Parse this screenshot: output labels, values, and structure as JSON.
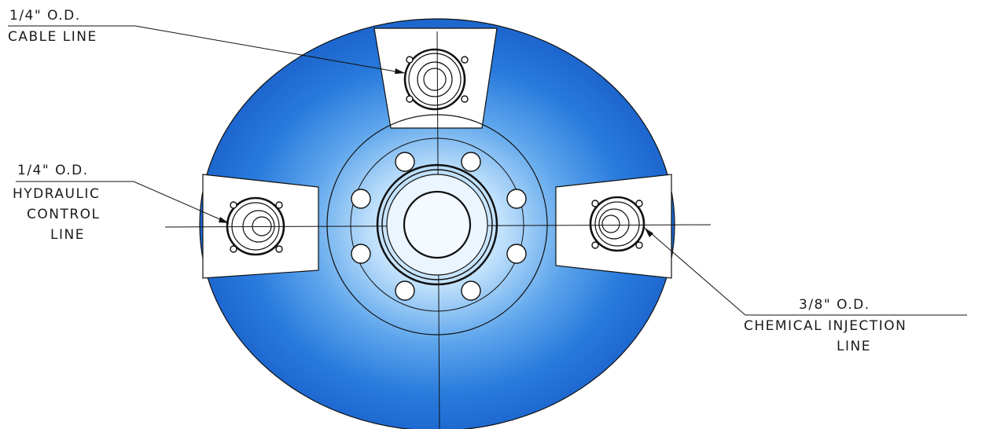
{
  "labels": {
    "cable": {
      "size": "1/4\" O.D.",
      "name": "CABLE LINE"
    },
    "hydraulic": {
      "size": "1/4\" O.D.",
      "line1": "HYDRAULIC",
      "line2": "CONTROL",
      "line3": "LINE"
    },
    "chemical": {
      "size": "3/8\" O.D.",
      "line1": "CHEMICAL INJECTION",
      "line2": "LINE"
    }
  },
  "colors": {
    "body_blue": "#1f6fd8",
    "center_light": "#dff0ff",
    "line": "#111111",
    "slot_fill": "#ffffff"
  }
}
